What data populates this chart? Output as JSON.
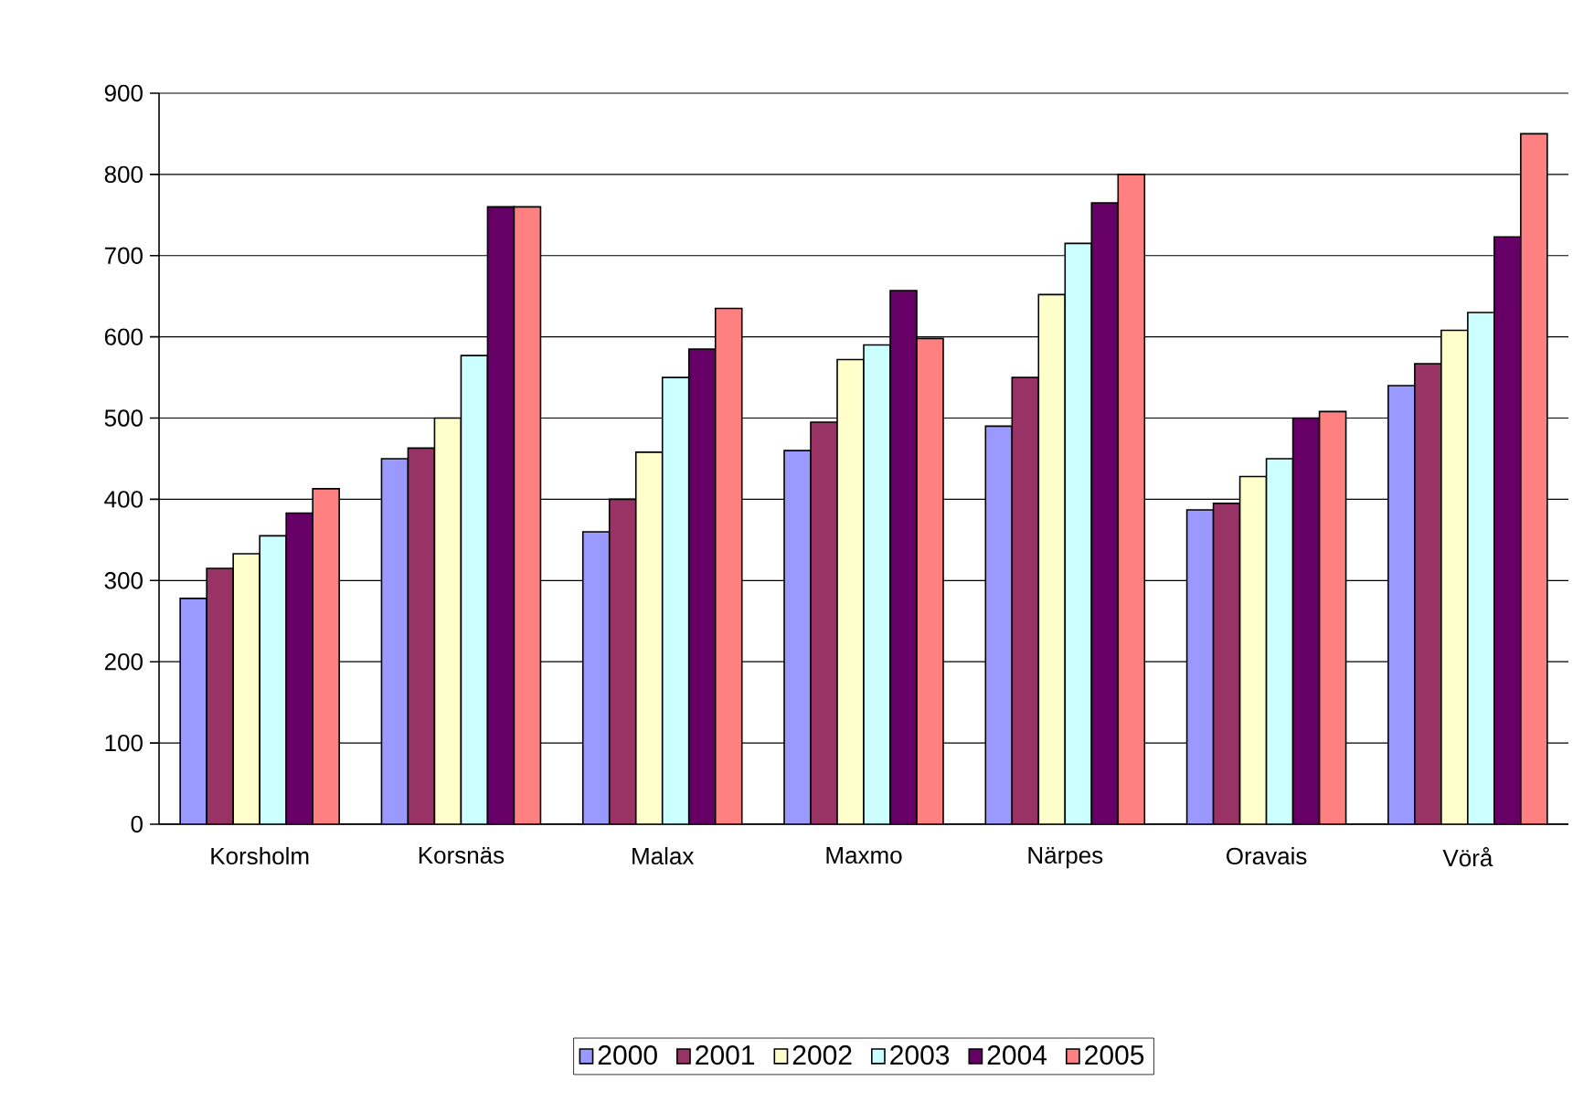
{
  "chart_data": {
    "type": "bar",
    "categories": [
      "Korsholm",
      "Korsnäs",
      "Malax",
      "Maxmo",
      "Närpes",
      "Oravais",
      "Vörå"
    ],
    "series": [
      {
        "name": "2000",
        "color": "#9999ff",
        "values": [
          278,
          450,
          360,
          460,
          490,
          387,
          540
        ]
      },
      {
        "name": "2001",
        "color": "#993366",
        "values": [
          315,
          463,
          400,
          495,
          550,
          395,
          567
        ]
      },
      {
        "name": "2002",
        "color": "#ffffcc",
        "values": [
          333,
          500,
          458,
          572,
          652,
          428,
          608
        ]
      },
      {
        "name": "2003",
        "color": "#ccffff",
        "values": [
          355,
          577,
          550,
          590,
          715,
          450,
          630
        ]
      },
      {
        "name": "2004",
        "color": "#660066",
        "values": [
          383,
          760,
          585,
          657,
          765,
          500,
          723
        ]
      },
      {
        "name": "2005",
        "color": "#ff8080",
        "values": [
          413,
          760,
          635,
          598,
          800,
          508,
          850
        ]
      }
    ],
    "ylim": [
      0,
      900
    ],
    "yticks": [
      0,
      100,
      200,
      300,
      400,
      500,
      600,
      700,
      800,
      900
    ],
    "grid": "y",
    "legend": "bottom"
  }
}
